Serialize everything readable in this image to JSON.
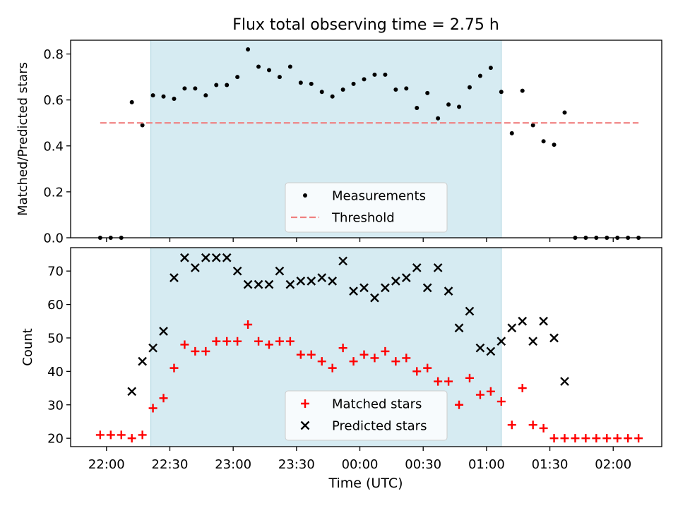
{
  "chart_data": [
    {
      "type": "scatter",
      "title": "Flux total observing time = 2.75 h",
      "xlabel": "",
      "ylabel": "Matched/Predicted stars",
      "xlim": [
        "21:43",
        "02:23"
      ],
      "ylim": [
        0,
        0.86
      ],
      "yticks": [
        0.0,
        0.2,
        0.4,
        0.6,
        0.8
      ],
      "shaded_region": {
        "from": "22:21",
        "to": "01:07"
      },
      "legend": {
        "position": "lower-center",
        "entries": [
          "Measurements",
          "Threshold"
        ]
      },
      "series": [
        {
          "name": "Measurements",
          "style": "dot",
          "color": "#000000",
          "points": [
            [
              "21:57",
              0.0
            ],
            [
              "22:02",
              0.0
            ],
            [
              "22:07",
              0.0
            ],
            [
              "22:12",
              0.59
            ],
            [
              "22:17",
              0.49
            ],
            [
              "22:22",
              0.62
            ],
            [
              "22:27",
              0.615
            ],
            [
              "22:32",
              0.605
            ],
            [
              "22:37",
              0.65
            ],
            [
              "22:42",
              0.65
            ],
            [
              "22:47",
              0.62
            ],
            [
              "22:52",
              0.665
            ],
            [
              "22:57",
              0.665
            ],
            [
              "23:02",
              0.7
            ],
            [
              "23:07",
              0.82
            ],
            [
              "23:12",
              0.745
            ],
            [
              "23:17",
              0.73
            ],
            [
              "23:22",
              0.7
            ],
            [
              "23:27",
              0.745
            ],
            [
              "23:32",
              0.675
            ],
            [
              "23:37",
              0.67
            ],
            [
              "23:42",
              0.635
            ],
            [
              "23:47",
              0.615
            ],
            [
              "23:52",
              0.645
            ],
            [
              "23:57",
              0.67
            ],
            [
              "00:02",
              0.69
            ],
            [
              "00:07",
              0.71
            ],
            [
              "00:12",
              0.71
            ],
            [
              "00:17",
              0.645
            ],
            [
              "00:22",
              0.65
            ],
            [
              "00:27",
              0.565
            ],
            [
              "00:32",
              0.63
            ],
            [
              "00:37",
              0.52
            ],
            [
              "00:42",
              0.58
            ],
            [
              "00:47",
              0.57
            ],
            [
              "00:52",
              0.655
            ],
            [
              "00:57",
              0.705
            ],
            [
              "01:02",
              0.74
            ],
            [
              "01:07",
              0.635
            ],
            [
              "01:12",
              0.455
            ],
            [
              "01:17",
              0.64
            ],
            [
              "01:22",
              0.49
            ],
            [
              "01:27",
              0.42
            ],
            [
              "01:32",
              0.405
            ],
            [
              "01:37",
              0.545
            ],
            [
              "01:42",
              0.0
            ],
            [
              "01:47",
              0.0
            ],
            [
              "01:52",
              0.0
            ],
            [
              "01:57",
              0.0
            ],
            [
              "02:02",
              0.0
            ],
            [
              "02:07",
              0.0
            ],
            [
              "02:12",
              0.0
            ]
          ]
        },
        {
          "name": "Threshold",
          "style": "dashed-line",
          "color": "#f08080",
          "points": [
            [
              "21:57",
              0.5
            ],
            [
              "02:12",
              0.5
            ]
          ]
        }
      ]
    },
    {
      "type": "scatter",
      "title": "",
      "xlabel": "Time (UTC)",
      "ylabel": "Count",
      "xlim": [
        "21:43",
        "02:23"
      ],
      "ylim": [
        17.5,
        77
      ],
      "yticks": [
        20,
        30,
        40,
        50,
        60,
        70
      ],
      "xticks": [
        "22:00",
        "22:30",
        "23:00",
        "23:30",
        "00:00",
        "00:30",
        "01:00",
        "01:30",
        "02:00"
      ],
      "shaded_region": {
        "from": "22:21",
        "to": "01:07"
      },
      "legend": {
        "position": "lower-center",
        "entries": [
          "Matched stars",
          "Predicted stars"
        ]
      },
      "series": [
        {
          "name": "Matched stars",
          "style": "plus",
          "color": "#ff0000",
          "points": [
            [
              "21:57",
              21
            ],
            [
              "22:02",
              21
            ],
            [
              "22:07",
              21
            ],
            [
              "22:12",
              20
            ],
            [
              "22:17",
              21
            ],
            [
              "22:22",
              29
            ],
            [
              "22:27",
              32
            ],
            [
              "22:32",
              41
            ],
            [
              "22:37",
              48
            ],
            [
              "22:42",
              46
            ],
            [
              "22:47",
              46
            ],
            [
              "22:52",
              49
            ],
            [
              "22:57",
              49
            ],
            [
              "23:02",
              49
            ],
            [
              "23:07",
              54
            ],
            [
              "23:12",
              49
            ],
            [
              "23:17",
              48
            ],
            [
              "23:22",
              49
            ],
            [
              "23:27",
              49
            ],
            [
              "23:32",
              45
            ],
            [
              "23:37",
              45
            ],
            [
              "23:42",
              43
            ],
            [
              "23:47",
              41
            ],
            [
              "23:52",
              47
            ],
            [
              "23:57",
              43
            ],
            [
              "00:02",
              45
            ],
            [
              "00:07",
              44
            ],
            [
              "00:12",
              46
            ],
            [
              "00:17",
              43
            ],
            [
              "00:22",
              44
            ],
            [
              "00:27",
              40
            ],
            [
              "00:32",
              41
            ],
            [
              "00:37",
              37
            ],
            [
              "00:42",
              37
            ],
            [
              "00:47",
              30
            ],
            [
              "00:52",
              38
            ],
            [
              "00:57",
              33
            ],
            [
              "01:02",
              34
            ],
            [
              "01:07",
              31
            ],
            [
              "01:12",
              24
            ],
            [
              "01:17",
              35
            ],
            [
              "01:22",
              24
            ],
            [
              "01:27",
              23
            ],
            [
              "01:32",
              20
            ],
            [
              "01:37",
              20
            ],
            [
              "01:42",
              20
            ],
            [
              "01:47",
              20
            ],
            [
              "01:52",
              20
            ],
            [
              "01:57",
              20
            ],
            [
              "02:02",
              20
            ],
            [
              "02:07",
              20
            ],
            [
              "02:12",
              20
            ]
          ]
        },
        {
          "name": "Predicted stars",
          "style": "x",
          "color": "#000000",
          "points": [
            [
              "22:12",
              34
            ],
            [
              "22:17",
              43
            ],
            [
              "22:22",
              47
            ],
            [
              "22:27",
              52
            ],
            [
              "22:32",
              68
            ],
            [
              "22:37",
              74
            ],
            [
              "22:42",
              71
            ],
            [
              "22:47",
              74
            ],
            [
              "22:52",
              74
            ],
            [
              "22:57",
              74
            ],
            [
              "23:02",
              70
            ],
            [
              "23:07",
              66
            ],
            [
              "23:12",
              66
            ],
            [
              "23:17",
              66
            ],
            [
              "23:22",
              70
            ],
            [
              "23:27",
              66
            ],
            [
              "23:32",
              67
            ],
            [
              "23:37",
              67
            ],
            [
              "23:42",
              68
            ],
            [
              "23:47",
              67
            ],
            [
              "23:52",
              73
            ],
            [
              "23:57",
              64
            ],
            [
              "00:02",
              65
            ],
            [
              "00:07",
              62
            ],
            [
              "00:12",
              65
            ],
            [
              "00:17",
              67
            ],
            [
              "00:22",
              68
            ],
            [
              "00:27",
              71
            ],
            [
              "00:32",
              65
            ],
            [
              "00:37",
              71
            ],
            [
              "00:42",
              64
            ],
            [
              "00:47",
              53
            ],
            [
              "00:52",
              58
            ],
            [
              "00:57",
              47
            ],
            [
              "01:02",
              46
            ],
            [
              "01:07",
              49
            ],
            [
              "01:12",
              53
            ],
            [
              "01:17",
              55
            ],
            [
              "01:22",
              49
            ],
            [
              "01:27",
              55
            ],
            [
              "01:32",
              50
            ],
            [
              "01:37",
              37
            ]
          ]
        }
      ]
    }
  ]
}
